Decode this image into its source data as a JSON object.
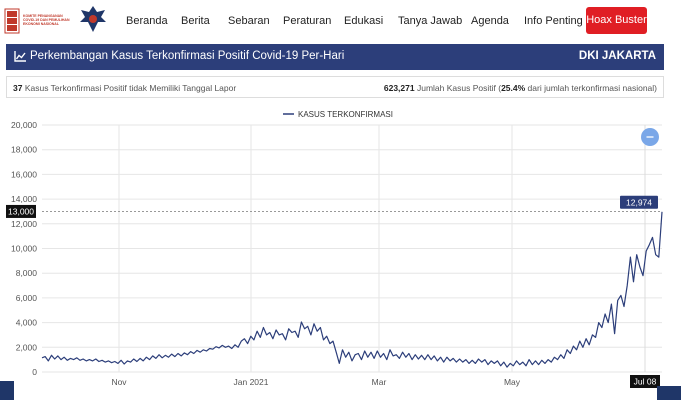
{
  "logo": {
    "text": "KOMITE PENANGANAN COVID-19 DAN PEMULIHAN EKONOMI NASIONAL",
    "kpc_text": "KPC PEN"
  },
  "nav": {
    "items": [
      "Beranda",
      "Berita",
      "Sebaran",
      "Peraturan",
      "Edukasi",
      "Tanya Jawab",
      "Agenda",
      "Info Penting"
    ],
    "hoax_label": "Hoax Buster"
  },
  "header": {
    "title": "Perkembangan Kasus Terkonfirmasi Positif Covid-19 Per-Hari",
    "region": "DKI JAKARTA",
    "icon": "chart-line-icon"
  },
  "info": {
    "left_count": "37",
    "left_text": "Kasus Terkonfirmasi Positif tidak Memiliki Tanggal Lapor",
    "right_count": "623,271",
    "right_text": "Jumlah Kasus Positif (",
    "right_pct": "25.4%",
    "right_tail": " dari jumlah terkonfirmasi nasional)"
  },
  "chart_data": {
    "type": "line",
    "legend": "KASUS TERKONFIRMASI",
    "ylim": [
      0,
      20000
    ],
    "yticks": [
      "0",
      "2,000",
      "4,000",
      "6,000",
      "8,000",
      "10,000",
      "12,000",
      "14,000",
      "16,000",
      "18,000",
      "20,000"
    ],
    "xtick_labels": [
      "Nov",
      "Jan 2021",
      "Mar",
      "May",
      "Jul 08"
    ],
    "crosshair_y_label": "13,000",
    "tooltip_value": "12,974",
    "grid": true,
    "series": [
      {
        "values": [
          1150,
          1250,
          900,
          1350,
          1050,
          1300,
          1000,
          1200,
          950,
          1100,
          1000,
          1150,
          950,
          1050,
          900,
          1000,
          900,
          1050,
          850,
          950,
          800,
          900,
          750,
          850,
          700,
          950,
          650,
          900,
          800,
          1050,
          850,
          1100,
          900,
          1200,
          1000,
          1300,
          1100,
          1400,
          1150,
          1350,
          1200,
          1450,
          1250,
          1500,
          1300,
          1550,
          1400,
          1650,
          1500,
          1750,
          1600,
          1800,
          1700,
          1900,
          1850,
          2050,
          1950,
          2150,
          2000,
          2100,
          1900,
          2200,
          2000,
          2500,
          2700,
          2300,
          2900,
          2600,
          3300,
          2800,
          3600,
          3000,
          3200,
          2700,
          3400,
          3000,
          3100,
          2600,
          3500,
          3200,
          3300,
          2800,
          4050,
          3500,
          3700,
          3000,
          3900,
          3300,
          3600,
          2600,
          2900,
          2300,
          2500,
          1600,
          700,
          1800,
          1200,
          1600,
          900,
          1400,
          1500,
          1000,
          1700,
          1200,
          1600,
          1100,
          1700,
          1200,
          1500,
          1000,
          1800,
          1300,
          1400,
          1100,
          1600,
          1200,
          1500,
          1000,
          1400,
          1050,
          1350,
          1000,
          1400,
          1000,
          1300,
          900,
          1200,
          800,
          1200,
          900,
          1100,
          800,
          1050,
          800,
          1000,
          700,
          950,
          700,
          1050,
          800,
          1000,
          600,
          900,
          700,
          900,
          500,
          800,
          400,
          700,
          500,
          900,
          600,
          800,
          500,
          1000,
          600,
          900,
          600,
          950,
          700,
          1000,
          800,
          1200,
          1000,
          1400,
          1100,
          1800,
          1500,
          2100,
          1800,
          2500,
          2000,
          2700,
          2200,
          3000,
          2800,
          4000,
          3600,
          4700,
          4000,
          5500,
          3100,
          5800,
          6200,
          5300,
          7000,
          9300,
          7300,
          9500,
          8500,
          7800,
          9800,
          10300,
          10900,
          9500,
          9300,
          12974
        ]
      }
    ]
  }
}
